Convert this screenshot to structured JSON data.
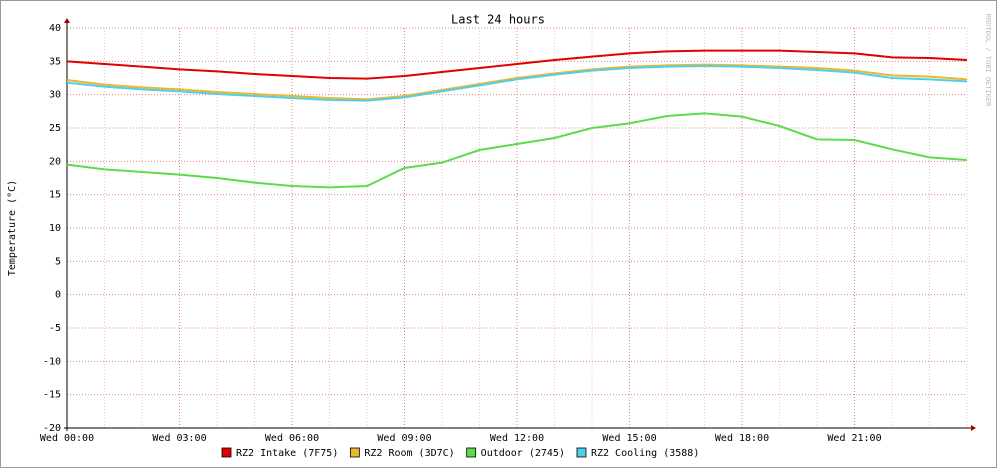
{
  "chart_data": {
    "type": "line",
    "title": "Last 24 hours",
    "y_label": "Temperature (°C)",
    "watermark": "RRDTOOL / TOBI OETIKER",
    "categories": [
      "Wed 00:00",
      null,
      null,
      "Wed 03:00",
      null,
      null,
      "Wed 06:00",
      null,
      null,
      "Wed 09:00",
      null,
      null,
      "Wed 12:00",
      null,
      null,
      "Wed 15:00",
      null,
      null,
      "Wed 18:00",
      null,
      null,
      "Wed 21:00",
      null,
      null,
      null
    ],
    "series": [
      {
        "name": "RZ2 Intake (7F75)",
        "color": "#e00000",
        "values": [
          35,
          34.6,
          34.2,
          33.8,
          33.5,
          33.1,
          32.8,
          32.5,
          32.4,
          32.8,
          33.4,
          34,
          34.6,
          35.2,
          35.7,
          36.2,
          36.5,
          36.6,
          36.6,
          36.6,
          36.4,
          36.2,
          35.6,
          35.5,
          35.2
        ]
      },
      {
        "name": "RZ2 Room (3D7C)",
        "color": "#e8b830",
        "values": [
          32.2,
          31.5,
          31.1,
          30.8,
          30.4,
          30.1,
          29.8,
          29.5,
          29.3,
          29.8,
          30.7,
          31.6,
          32.5,
          33.2,
          33.8,
          34.2,
          34.4,
          34.5,
          34.4,
          34.2,
          34,
          33.6,
          32.9,
          32.7,
          32.3
        ]
      },
      {
        "name": "Outdoor (2745)",
        "color": "#5cdc4c",
        "values": [
          19.5,
          18.8,
          18.4,
          18,
          17.5,
          16.8,
          16.3,
          16.1,
          16.3,
          19,
          19.8,
          21.7,
          22.6,
          23.5,
          25,
          25.7,
          26.8,
          27.2,
          26.7,
          25.3,
          23.3,
          23.2,
          21.8,
          20.6,
          20.2
        ]
      },
      {
        "name": "RZ2 Cooling (3588)",
        "color": "#50d0e8",
        "values": [
          31.8,
          31.2,
          30.8,
          30.5,
          30.1,
          29.8,
          29.5,
          29.2,
          29.1,
          29.6,
          30.5,
          31.4,
          32.3,
          33,
          33.6,
          34,
          34.2,
          34.3,
          34.2,
          34,
          33.7,
          33.3,
          32.5,
          32.3,
          32
        ]
      }
    ],
    "ylim": [
      -20,
      40
    ],
    "yticks": [
      -20,
      -15,
      -10,
      -5,
      0,
      5,
      10,
      15,
      20,
      25,
      30,
      35,
      40
    ],
    "grid": true
  }
}
